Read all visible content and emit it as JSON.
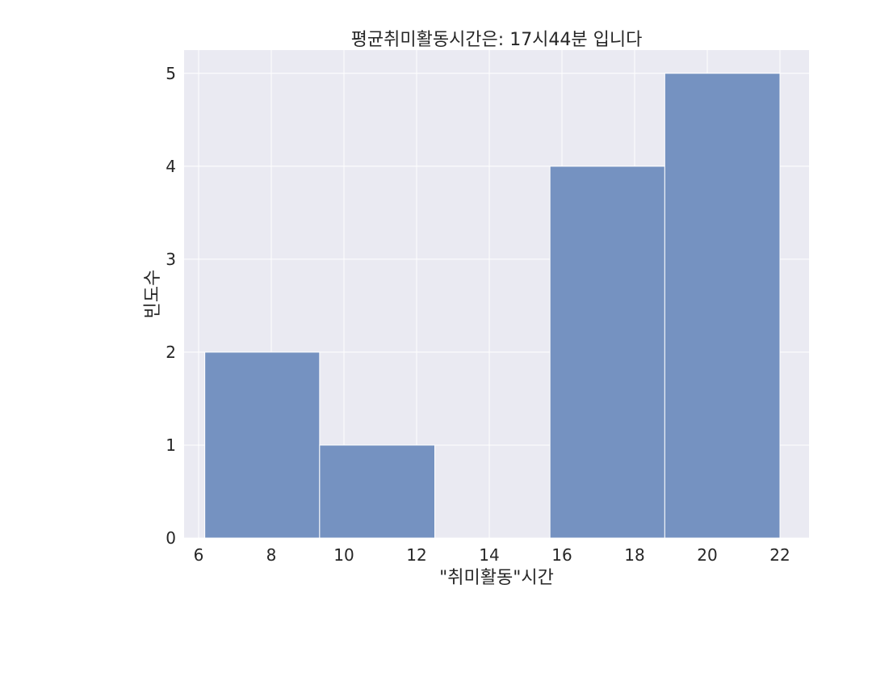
{
  "chart_data": {
    "type": "bar",
    "title": "평균취미활동시간은: 17시44분 입니다",
    "xlabel": "\"취미활동\"시간",
    "ylabel": "빈도수",
    "xlim": [
      5.6,
      22.8
    ],
    "ylim": [
      0,
      5.25
    ],
    "xticks": [
      6,
      8,
      10,
      12,
      14,
      16,
      18,
      20,
      22
    ],
    "yticks": [
      0,
      1,
      2,
      3,
      4,
      5
    ],
    "grid": true,
    "legend": "none",
    "bins": [
      {
        "start": 6.17,
        "end": 9.33,
        "count": 2
      },
      {
        "start": 9.33,
        "end": 12.5,
        "count": 1
      },
      {
        "start": 12.5,
        "end": 15.67,
        "count": 0
      },
      {
        "start": 15.67,
        "end": 18.83,
        "count": 4
      },
      {
        "start": 18.83,
        "end": 22.0,
        "count": 5
      }
    ],
    "colors": {
      "bar_fill": "#7592c1",
      "bar_edge": "#ffffff",
      "plot_background": "#eaeaf2",
      "grid": "#ffffff"
    }
  }
}
